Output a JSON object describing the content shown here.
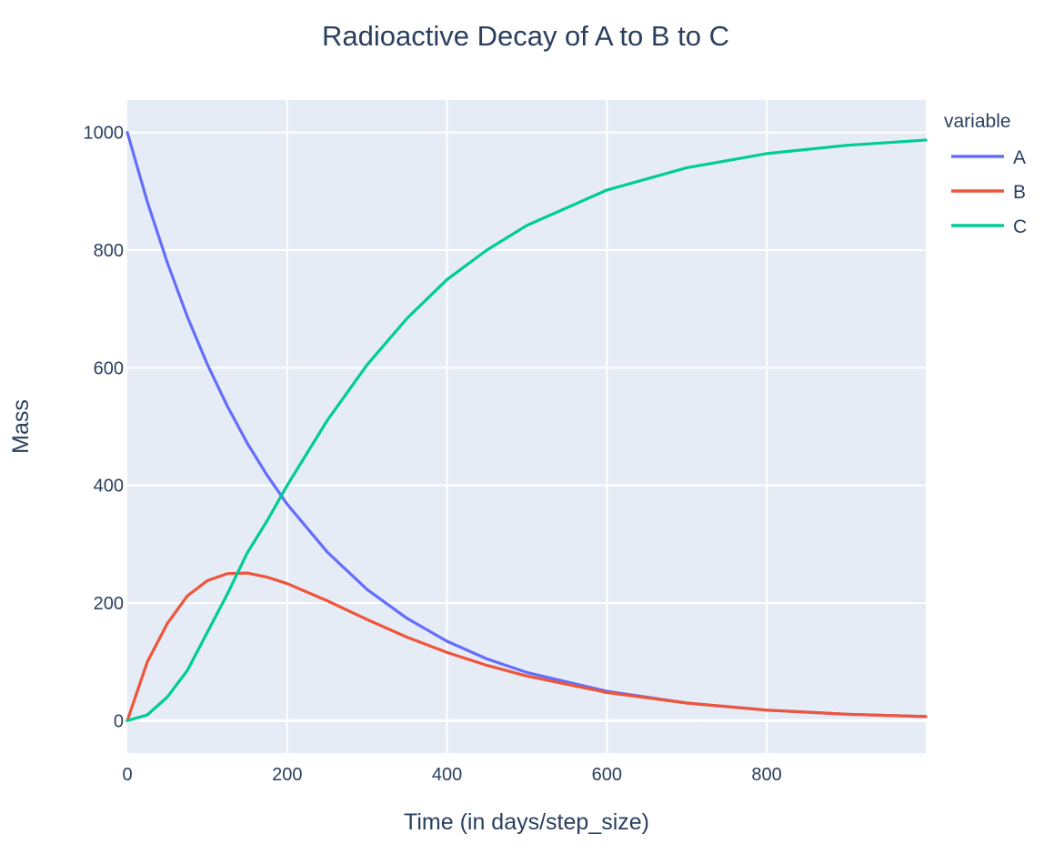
{
  "chart_data": {
    "type": "line",
    "title": "Radioactive Decay of A to B to C",
    "xlabel": "Time (in days/step_size)",
    "ylabel": "Mass",
    "xlim": [
      0,
      999
    ],
    "ylim": [
      -55,
      1055
    ],
    "xticks": [
      0,
      200,
      400,
      600,
      800
    ],
    "yticks": [
      0,
      200,
      400,
      600,
      800,
      1000
    ],
    "xtick_labels": [
      "0",
      "200",
      "400",
      "600",
      "800"
    ],
    "ytick_labels": [
      "0",
      "200",
      "400",
      "600",
      "800",
      "1000"
    ],
    "grid": true,
    "legend_title": "variable",
    "legend_position": "top-right-outside",
    "series": [
      {
        "name": "A",
        "color": "#636efa",
        "x": [
          0,
          25,
          50,
          75,
          100,
          125,
          150,
          175,
          200,
          250,
          300,
          350,
          400,
          450,
          500,
          600,
          700,
          800,
          900,
          999
        ],
        "y": [
          1000,
          882,
          779,
          687,
          606,
          535,
          472,
          417,
          368,
          287,
          223,
          174,
          135,
          105,
          82,
          50,
          30,
          18,
          11,
          7
        ]
      },
      {
        "name": "B",
        "color": "#ef553b",
        "x": [
          0,
          25,
          50,
          75,
          100,
          125,
          150,
          175,
          200,
          250,
          300,
          350,
          400,
          450,
          500,
          600,
          700,
          800,
          900,
          999
        ],
        "y": [
          0,
          100,
          165,
          212,
          238,
          250,
          251,
          244,
          233,
          204,
          172,
          142,
          116,
          94,
          76,
          48,
          30,
          18,
          11,
          7
        ]
      },
      {
        "name": "C",
        "color": "#00cc96",
        "x": [
          0,
          25,
          50,
          75,
          100,
          125,
          150,
          175,
          200,
          250,
          300,
          350,
          400,
          450,
          500,
          600,
          700,
          800,
          900,
          999
        ],
        "y": [
          0,
          10,
          40,
          85,
          150,
          215,
          285,
          340,
          400,
          510,
          605,
          684,
          750,
          800,
          842,
          902,
          940,
          964,
          978,
          987
        ]
      }
    ]
  },
  "colors": {
    "plot_background": "#e5ecf6",
    "grid": "#ffffff",
    "text": "#2a3f5f"
  }
}
